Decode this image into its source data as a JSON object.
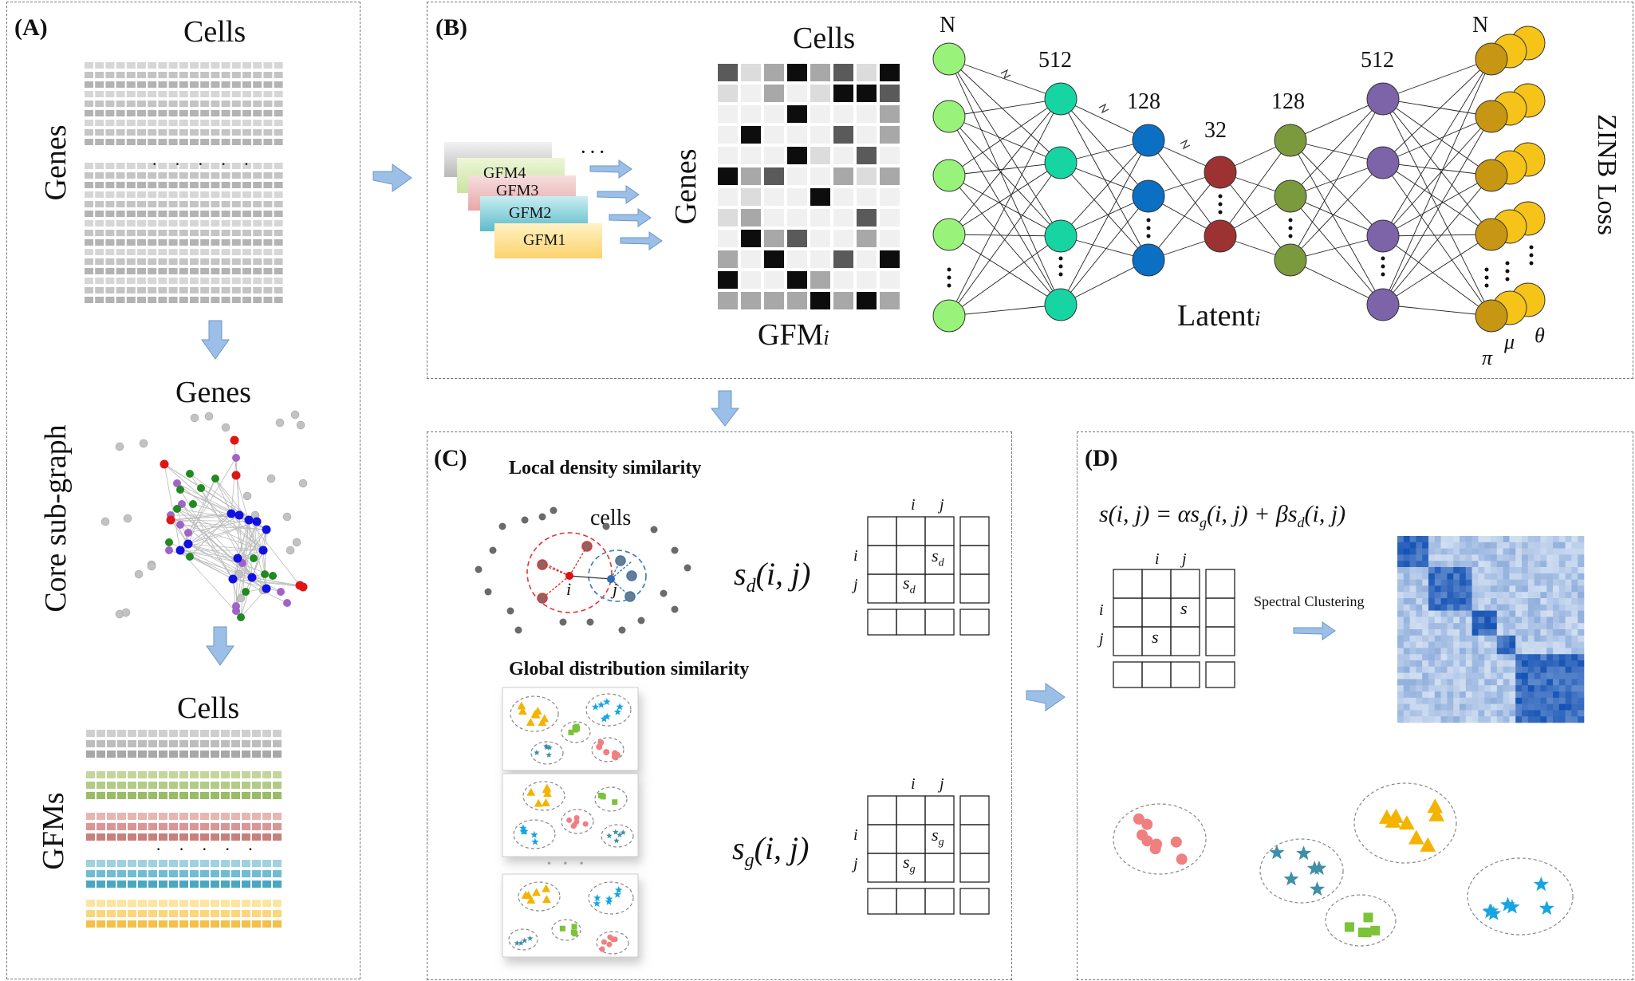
{
  "panel_a": {
    "label": "(A)",
    "top_cells": "Cells",
    "genes_axis": "Genes",
    "core_title": "Genes",
    "core_axis": "Core sub-graph",
    "bottom_cells": "Cells",
    "gfm_axis": "GFMs",
    "dots": "· · · · ·"
  },
  "panel_b": {
    "label": "(B)",
    "gfm_stack": [
      "GFM4",
      "GFM3",
      "GFM2",
      "GFM1"
    ],
    "ellipsis": "· · ·",
    "matrix_cells": "Cells",
    "matrix_genes": "Genes",
    "matrix_caption": "GFM",
    "matrix_caption_sub": "i",
    "layer_sizes": [
      "N",
      "512",
      "128",
      "32",
      "128",
      "512",
      "N"
    ],
    "latent": "Latent",
    "latent_sub": "i",
    "zinb": "ZINB Loss",
    "output_params": [
      "π",
      "μ",
      "θ"
    ],
    "colors": {
      "input": "#99f27a",
      "enc1": "#16d5a2",
      "enc2": "#0b6fc4",
      "latent": "#9c3232",
      "dec1": "#7a9a3d",
      "dec2": "#7d63a8",
      "out_front": "#c79612",
      "out_back": "#f6c318"
    }
  },
  "panel_c": {
    "label": "(C)",
    "local_title": "Local density similarity",
    "cells_label": "cells",
    "point_i": "i",
    "point_j": "j",
    "sd_formula": "s",
    "sd_sub": "d",
    "sd_args": "(i, j)",
    "global_title": "Global distribution similarity",
    "sg_formula": "s",
    "sg_sub": "g",
    "sg_args": "(i, j)",
    "matrix_i": "i",
    "matrix_j": "j",
    "sheet_dots": "• • •"
  },
  "panel_d": {
    "label": "(D)",
    "equation": "s(i, j) = αs",
    "equation_sub1": "g",
    "equation_mid": "(i, j) + βs",
    "equation_sub2": "d",
    "equation_end": "(i, j)",
    "matrix_i": "i",
    "matrix_j": "j",
    "matrix_s": "s",
    "spectral": "Spectral Clustering"
  }
}
